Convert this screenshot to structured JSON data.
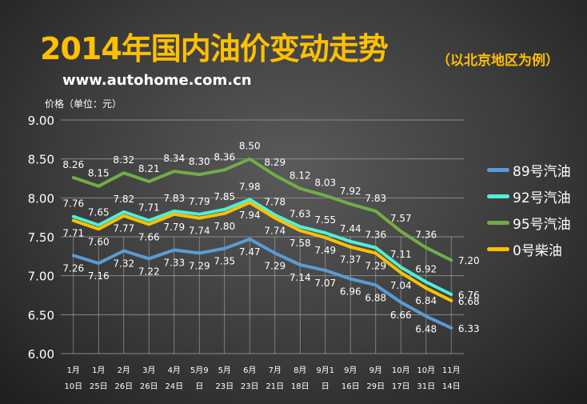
{
  "header": {
    "title": "2014年国内油价变动走势",
    "subtitle": "（以北京地区为例）",
    "url": "www.autohome.com.cn",
    "unit_label": "价格（单位：元）"
  },
  "colors": {
    "series_89": "#5b9bd5",
    "series_92": "#4ff0d8",
    "series_95": "#70ad47",
    "series_0": "#ffc000"
  },
  "chart_data": {
    "type": "line",
    "ylabel": "价格（单位：元）",
    "ylim": [
      6.0,
      9.0
    ],
    "yticks": [
      "6.00",
      "6.50",
      "7.00",
      "7.50",
      "8.00",
      "8.50",
      "9.00"
    ],
    "grid": "horizontal",
    "legend_position": "right",
    "categories": [
      [
        "1月",
        "10日"
      ],
      [
        "1月",
        "25日"
      ],
      [
        "2月",
        "26日"
      ],
      [
        "3月",
        "26日"
      ],
      [
        "4月",
        "24日"
      ],
      [
        "5月9",
        "日"
      ],
      [
        "5月",
        "23日"
      ],
      [
        "6月",
        "23日"
      ],
      [
        "7月",
        "21日"
      ],
      [
        "8月",
        "18日"
      ],
      [
        "9月1",
        "日"
      ],
      [
        "9月",
        "16日"
      ],
      [
        "9月",
        "29日"
      ],
      [
        "10月",
        "17日"
      ],
      [
        "10月",
        "31日"
      ],
      [
        "11月",
        "14日"
      ]
    ],
    "series": [
      {
        "name": "89号汽油",
        "color": "#5b9bd5",
        "values": [
          7.26,
          7.16,
          7.32,
          7.22,
          7.33,
          7.29,
          7.35,
          7.47,
          7.29,
          7.14,
          7.07,
          6.96,
          6.88,
          6.66,
          6.48,
          6.33
        ]
      },
      {
        "name": "92号汽油",
        "color": "#4ff0d8",
        "values": [
          7.76,
          7.65,
          7.82,
          7.71,
          7.83,
          7.79,
          7.85,
          7.98,
          7.78,
          7.63,
          7.55,
          7.44,
          7.36,
          7.11,
          6.92,
          6.76
        ]
      },
      {
        "name": "95号汽油",
        "color": "#70ad47",
        "values": [
          8.26,
          8.15,
          8.32,
          8.21,
          8.34,
          8.3,
          8.36,
          8.5,
          8.29,
          8.12,
          8.03,
          7.92,
          7.83,
          7.57,
          7.36,
          7.2
        ]
      },
      {
        "name": "0号柴油",
        "color": "#ffc000",
        "values": [
          7.71,
          7.6,
          7.77,
          7.66,
          7.79,
          7.74,
          7.8,
          7.94,
          7.74,
          7.58,
          7.49,
          7.37,
          7.29,
          7.04,
          6.84,
          6.68
        ]
      }
    ]
  }
}
